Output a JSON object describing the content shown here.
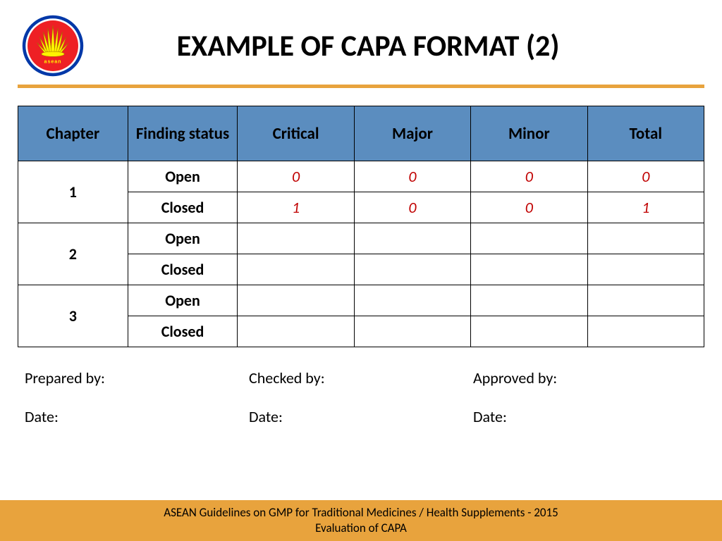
{
  "colors": {
    "header_bg": "#5b8dbf",
    "divider": "#e8a33d",
    "footer_bg": "#e8a33d",
    "value_text": "#c00000",
    "border": "#000000",
    "logo_circle": "#ee2024",
    "logo_ring": "#0038a8",
    "logo_stalk": "#fff200"
  },
  "title": "EXAMPLE OF CAPA FORMAT (2)",
  "table": {
    "columns": [
      "Chapter",
      "Finding status",
      "Critical",
      "Major",
      "Minor",
      "Total"
    ],
    "chapters": [
      {
        "id": "1",
        "rows": [
          {
            "status": "Open",
            "values": [
              "0",
              "0",
              "0",
              "0"
            ]
          },
          {
            "status": "Closed",
            "values": [
              "1",
              "0",
              "0",
              "1"
            ]
          }
        ]
      },
      {
        "id": "2",
        "rows": [
          {
            "status": "Open",
            "values": [
              "",
              "",
              "",
              ""
            ]
          },
          {
            "status": "Closed",
            "values": [
              "",
              "",
              "",
              ""
            ]
          }
        ]
      },
      {
        "id": "3",
        "rows": [
          {
            "status": "Open",
            "values": [
              "",
              "",
              "",
              ""
            ]
          },
          {
            "status": "Closed",
            "values": [
              "",
              "",
              "",
              ""
            ]
          }
        ]
      }
    ]
  },
  "signatures": {
    "col1": {
      "by": "Prepared by:",
      "date": "Date:"
    },
    "col2": {
      "by": "Checked by:",
      "date": "Date:"
    },
    "col3": {
      "by": "Approved by:",
      "date": "Date:"
    }
  },
  "footer": {
    "line1": "ASEAN Guidelines on GMP for Traditional Medicines  / Health Supplements - 2015",
    "line2": "Evaluation of CAPA"
  }
}
